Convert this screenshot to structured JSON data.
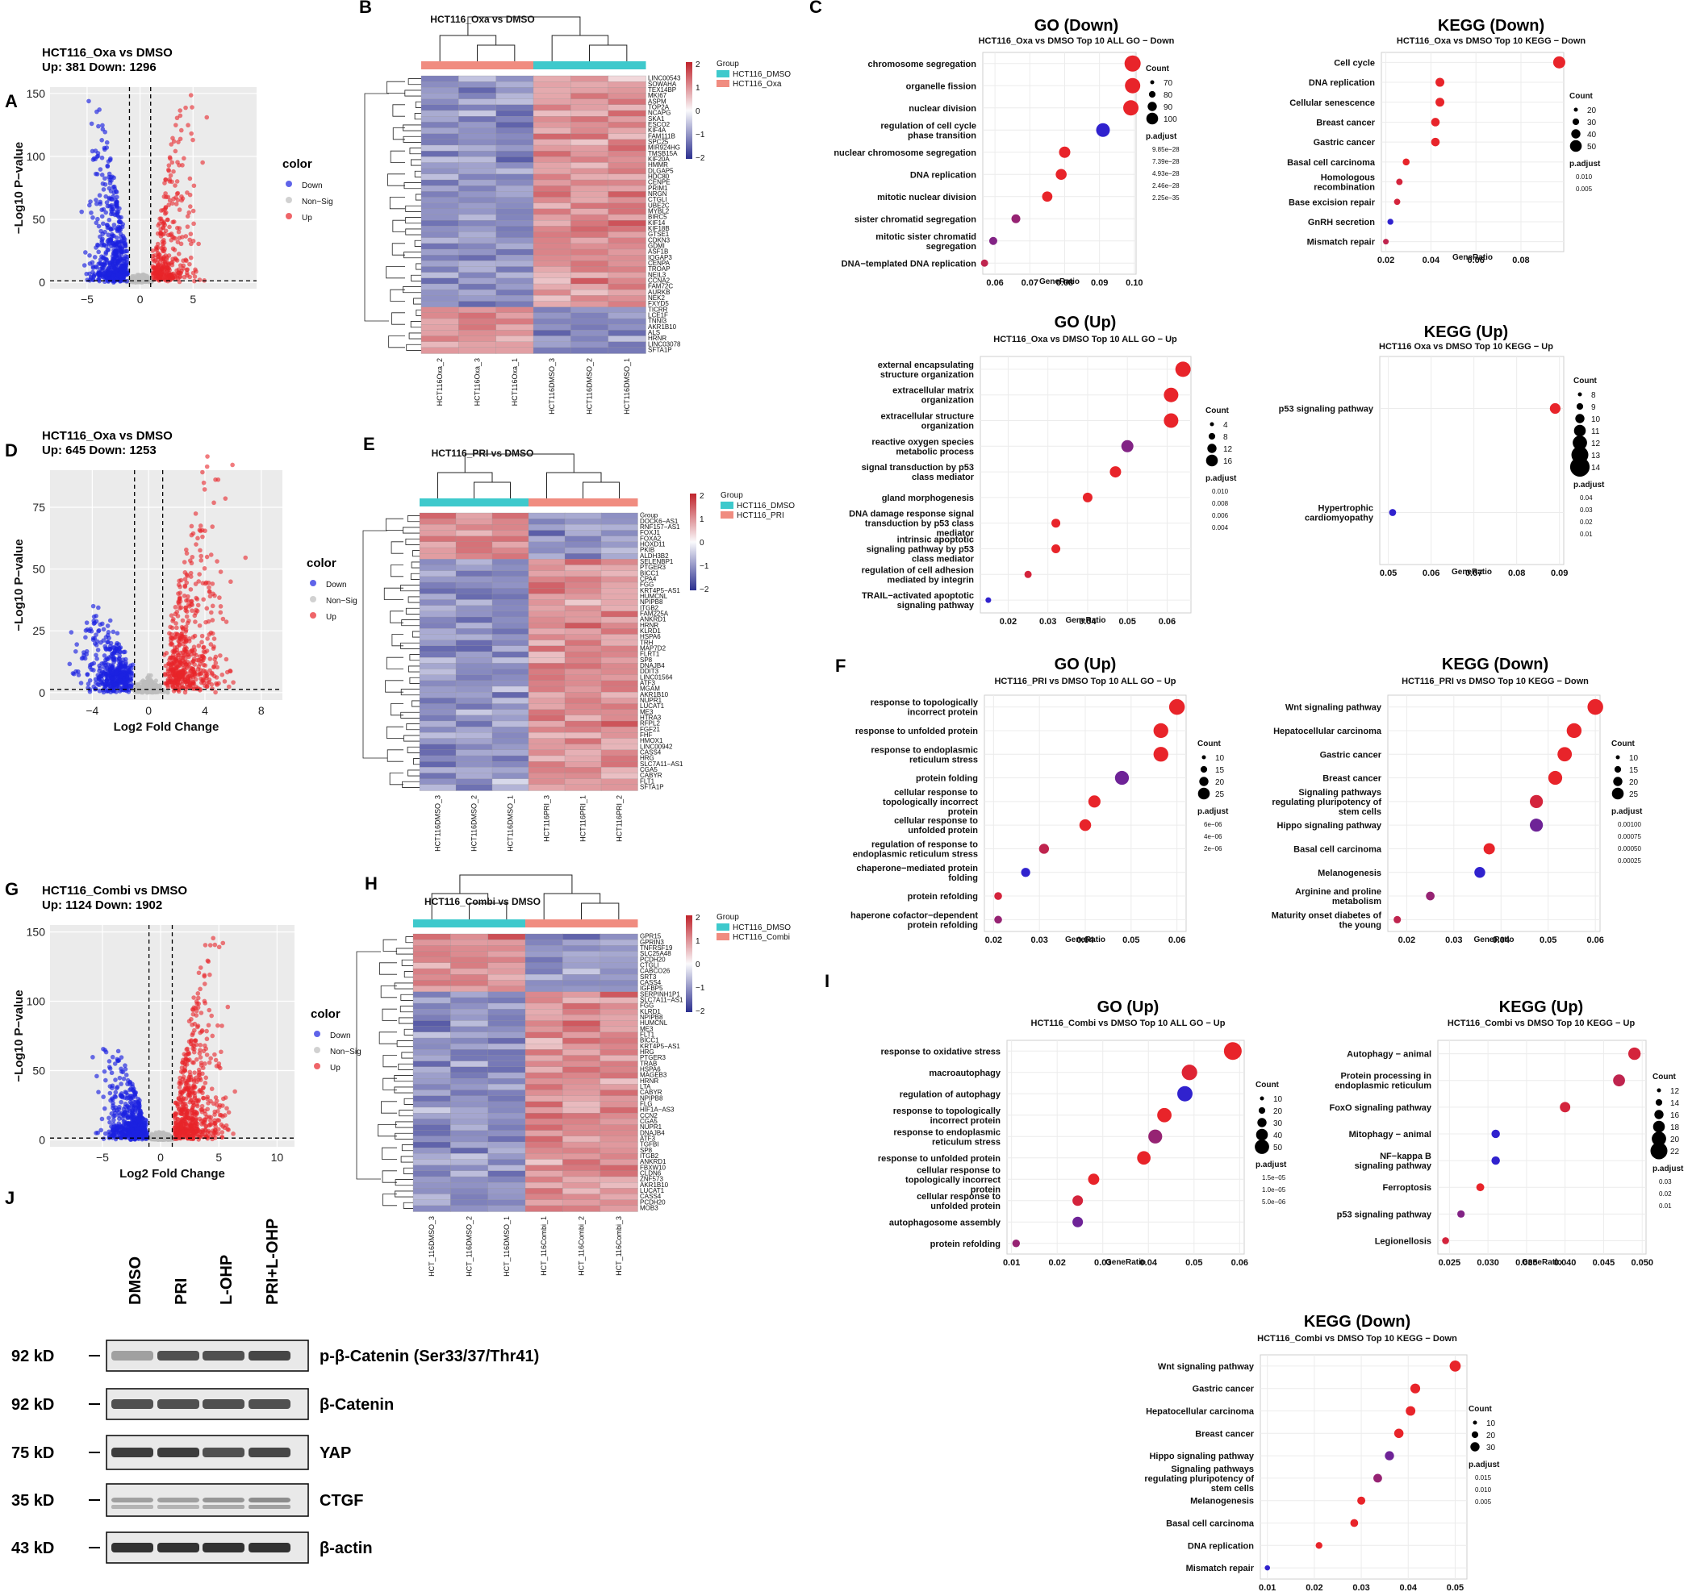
{
  "panel_labels": [
    "A",
    "B",
    "C",
    "D",
    "E",
    "F",
    "G",
    "H",
    "I",
    "J"
  ],
  "volcano": [
    {
      "id": "A",
      "title": "HCT116_Oxa vs DMSO",
      "counts": "Up: 381 Down: 1296",
      "xlabel": "",
      "ylabel": "−Log10 P−value",
      "xticks": [
        "−5",
        "0",
        "5"
      ],
      "yticks": [
        "0",
        "50",
        "100",
        "150"
      ],
      "legend_title": "color",
      "legend": [
        "Down",
        "Non−Sig",
        "Up"
      ]
    },
    {
      "id": "D",
      "title": "HCT116_Oxa vs DMSO",
      "counts": "Up: 645 Down: 1253",
      "xlabel": "Log2 Fold Change",
      "ylabel": "−Log10 P−value",
      "xticks": [
        "−4",
        "0",
        "4",
        "8"
      ],
      "yticks": [
        "0",
        "25",
        "50",
        "75"
      ],
      "legend_title": "color",
      "legend": [
        "Down",
        "Non−Sig",
        "Up"
      ]
    },
    {
      "id": "G",
      "title": "HCT116_Combi vs DMSO",
      "counts": "Up: 1124 Down: 1902",
      "xlabel": "Log2 Fold Change",
      "ylabel": "−Log10 P−value",
      "xticks": [
        "−5",
        "0",
        "5",
        "10"
      ],
      "yticks": [
        "0",
        "50",
        "100",
        "150"
      ],
      "legend_title": "color",
      "legend": [
        "Down",
        "Non−Sig",
        "Up"
      ]
    }
  ],
  "heatmaps": [
    {
      "id": "B",
      "title": "HCT116_Oxa vs DMSO",
      "group_title": "Group",
      "groups": [
        "HCT116_DMSO",
        "HCT116_Oxa"
      ],
      "scale": [
        "2",
        "1",
        "0",
        "−1",
        "−2"
      ],
      "columns": [
        "HCT116Oxa_2",
        "HCT116Oxa_3",
        "HCT116Oxa_1",
        "HCT116DMSO_3",
        "HCT116DMSO_2",
        "HCT116DMSO_1"
      ],
      "genes": [
        "LINC00543",
        "SOWAHA",
        "TEX14BP",
        "MKI67",
        "ASPM",
        "TOP2A",
        "NCAPG",
        "SKA1",
        "ESCO2",
        "KIF4A",
        "FAM111B",
        "SPC25",
        "MIR924HG",
        "TMSB15A",
        "KIF20A",
        "HMMR",
        "DLGAP5",
        "HDC80",
        "CENPE",
        "PRIM1",
        "NRGN",
        "CTGLI",
        "UBE2C",
        "MYBL2",
        "BIRC5",
        "KIF14",
        "KIF18B",
        "GTSE1",
        "CDKN3",
        "GDMI",
        "ASF1B",
        "IQGAP3",
        "CENPA",
        "TROAP",
        "NEIL3",
        "CCNA2",
        "FAM72C",
        "AURKB",
        "NEK2",
        "FXYD5",
        "TICRR",
        "LCE1F",
        "TNNI3",
        "AKR1B10",
        "ALS",
        "HRNR",
        "LINC03078",
        "SFTA1P",
        "IGFL2−AS1"
      ]
    },
    {
      "id": "E",
      "title": "HCT116_PRI vs DMSO",
      "group_title": "Group",
      "groups": [
        "HCT116_DMSO",
        "HCT116_PRI"
      ],
      "scale": [
        "2",
        "1",
        "0",
        "−1",
        "−2"
      ],
      "columns": [
        "HCT116DMSO_3",
        "HCT116DMSO_2",
        "HCT116DMSO_1",
        "HCT116PRI_3",
        "HCT116PRI_1",
        "HCT116PRI_2"
      ],
      "genes": [
        "Group",
        "DOCK6−AS1",
        "RNF157−AS1",
        "FOXJ1",
        "FOXA2",
        "HOXD11",
        "PKIB",
        "ALDH3B2",
        "SELENBP1",
        "PTGER3",
        "BICC1",
        "CPA4",
        "FGG",
        "KRT4P5−AS1",
        "HUMCNL",
        "NPIPB8",
        "ITGB2",
        "FAM225A",
        "ANKRD1",
        "HRNR",
        "KLRD1",
        "HSPA6",
        "TRH",
        "MAP7D2",
        "FLRT1",
        "SP8",
        "DNAJB4",
        "DDIT3",
        "LINC01564",
        "ATF3",
        "MGAM",
        "AKR1B10",
        "NUPR1",
        "LUCAT1",
        "ME3",
        "HTRA3",
        "RFPL2",
        "FGF21",
        "FHF",
        "HMOX1",
        "LINC00942",
        "CASS4",
        "HRG",
        "SLC7A11−AS1",
        "CGA5",
        "CABYR",
        "FLT1",
        "SFTA1P",
        "DNG1",
        "FBXW10"
      ]
    },
    {
      "id": "H",
      "title": "HCT116_Combi vs DMSO",
      "group_title": "Group",
      "groups": [
        "HCT116_DMSO",
        "HCT116_Combi"
      ],
      "scale": [
        "2",
        "1",
        "0",
        "−1",
        "−2"
      ],
      "columns": [
        "HCT_116DMSO_3",
        "HCT_116DMSO_2",
        "HCT_116DMSO_1",
        "HCT_116Combi_1",
        "HCT_116Combi_2",
        "HCT_116Combi_3"
      ],
      "genes": [
        "GPR15",
        "GPRIN3",
        "TNFRSF19",
        "SLC25A48",
        "PCDH20",
        "CTGLI",
        "CABCO26",
        "SRT3",
        "CASS4",
        "IGFBP5",
        "SERPINH1P1",
        "SLC7A11−AS1",
        "FGG",
        "KLRD1",
        "NPIPB8",
        "HUMCNL",
        "ME3",
        "FLT1",
        "BICC1",
        "KRT4P5−AS1",
        "HRG",
        "PTGER3",
        "TRAB",
        "HSPA6",
        "MAGEB3",
        "HRNR",
        "LTA",
        "CABYR",
        "NPIPB8",
        "FLG",
        "HIF1A−AS3",
        "CCN2",
        "CGA5",
        "NUPR1",
        "DNAJB4",
        "ATF3",
        "TGFBI",
        "SP8",
        "ITGB2",
        "ANKRD1",
        "FBXW10",
        "CLDN6",
        "ZNF573",
        "AKR1B10",
        "LUCAT1",
        "CASS4",
        "PCDH20",
        "MOB3"
      ]
    }
  ],
  "dotplots": [
    {
      "id": "GO_down",
      "big": "GO (Down)",
      "sub": "HCT116_Oxa vs DMSO Top 10 ALL GO − Down",
      "xlabel": "GeneRatio",
      "xticks": [
        0.06,
        0.07,
        0.08,
        0.09,
        0.1
      ],
      "xtick_labels": [
        "0.06",
        "0.07",
        "0.08",
        "0.09",
        "0.10"
      ],
      "terms": [
        "chromosome segregation",
        "organelle fission",
        "nuclear division",
        "regulation of cell cycle\nphase transition",
        "nuclear chromosome segregation",
        "DNA replication",
        "mitotic nuclear division",
        "sister chromatid segregation",
        "mitotic sister chromatid\nsegregation",
        "DNA−templated DNA replication"
      ],
      "x": [
        0.0995,
        0.0995,
        0.099,
        0.091,
        0.08,
        0.079,
        0.075,
        0.066,
        0.0595,
        0.057
      ],
      "size": [
        100,
        95,
        95,
        85,
        70,
        68,
        64,
        55,
        50,
        45
      ],
      "p": [
        0.0,
        0.0,
        0.0,
        0.9,
        0.0,
        0.0,
        0.0,
        0.4,
        0.5,
        0.2
      ],
      "legend_count": "Count",
      "count_vals": [
        "70",
        "80",
        "90",
        "100"
      ],
      "legend_p": "p.adjust",
      "p_vals": [
        "9.85e−28",
        "7.39e−28",
        "4.93e−28",
        "2.46e−28",
        "2.25e−35"
      ]
    },
    {
      "id": "KEGG_down",
      "big": "KEGG (Down)",
      "sub": "HCT116_Oxa vs DMSO Top 10 KEGG − Down",
      "xlabel": "GeneRatio",
      "xticks": [
        0.02,
        0.04,
        0.06,
        0.08
      ],
      "xtick_labels": [
        "0.02",
        "0.04",
        "0.06",
        "0.08"
      ],
      "terms": [
        "Cell cycle",
        "DNA replication",
        "Cellular senescence",
        "Breast cancer",
        "Gastric cancer",
        "Basal cell carcinoma",
        "Homologous\nrecombination",
        "Base excision repair",
        "GnRH secretion",
        "Mismatch repair"
      ],
      "x": [
        0.097,
        0.044,
        0.044,
        0.042,
        0.042,
        0.029,
        0.026,
        0.025,
        0.022,
        0.02
      ],
      "size": [
        50,
        30,
        30,
        28,
        28,
        18,
        15,
        14,
        12,
        10
      ],
      "p": [
        0.0,
        0.0,
        0.0,
        0.0,
        0.0,
        0.0,
        0.1,
        0.1,
        0.9,
        0.2
      ],
      "legend_count": "Count",
      "count_vals": [
        "20",
        "30",
        "40",
        "50"
      ],
      "legend_p": "p.adjust",
      "p_vals": [
        "0.010",
        "0.005"
      ]
    },
    {
      "id": "GO_up_oxa",
      "big": "GO (Up)",
      "sub": "HCT116_Oxa vs DMSO Top 10 ALL GO − Up",
      "xlabel": "GeneRatio",
      "xticks": [
        0.02,
        0.03,
        0.04,
        0.05,
        0.06
      ],
      "xtick_labels": [
        "0.02",
        "0.03",
        "0.04",
        "0.05",
        "0.06"
      ],
      "terms": [
        "external encapsulating\nstructure organization",
        "extracellular matrix\norganization",
        "extracellular structure\norganization",
        "reactive oxygen species\nmetabolic process",
        "signal transduction by p53\nclass mediator",
        "gland morphogenesis",
        "DNA damage response signal\ntransduction by p53 class\nmediator",
        "intrinsic apoptotic\nsignaling pathway by p53\nclass mediator",
        "regulation of cell adhesion\nmediated by integrin",
        "TRAIL−activated apoptotic\nsignaling pathway"
      ],
      "x": [
        0.064,
        0.061,
        0.061,
        0.05,
        0.047,
        0.04,
        0.032,
        0.032,
        0.025,
        0.015
      ],
      "size": [
        16,
        15,
        15,
        12,
        11,
        9,
        8,
        8,
        6,
        4
      ],
      "p": [
        0.0,
        0.0,
        0.0,
        0.5,
        0.0,
        0.0,
        0.0,
        0.0,
        0.1,
        0.9
      ],
      "legend_count": "Count",
      "count_vals": [
        "4",
        "8",
        "12",
        "16"
      ],
      "legend_p": "p.adjust",
      "p_vals": [
        "0.010",
        "0.008",
        "0.006",
        "0.004"
      ]
    },
    {
      "id": "KEGG_up_oxa",
      "big": "KEGG (Up)",
      "sub": "HCT116 Oxa vs DMSO Top 10 KEGG − Up",
      "xlabel": "GeneRatio",
      "xticks": [
        0.05,
        0.06,
        0.07,
        0.08,
        0.09
      ],
      "xtick_labels": [
        "0.05",
        "0.06",
        "0.07",
        "0.08",
        "0.09"
      ],
      "terms": [
        "p53 signaling pathway",
        "Hypertrophic\ncardiomyopathy"
      ],
      "x": [
        0.089,
        0.051
      ],
      "size": [
        14,
        8
      ],
      "p": [
        0.0,
        0.9
      ],
      "legend_count": "Count",
      "count_vals": [
        "8",
        "9",
        "10",
        "11",
        "12",
        "13",
        "14"
      ],
      "legend_p": "p.adjust",
      "p_vals": [
        "0.04",
        "0.03",
        "0.02",
        "0.01"
      ]
    },
    {
      "id": "GO_up_pri",
      "big": "GO (Up)",
      "sub": "HCT116_PRI vs DMSO Top 10 ALL GO − Up",
      "xlabel": "GeneRatio",
      "xticks": [
        0.02,
        0.03,
        0.04,
        0.05,
        0.06
      ],
      "xtick_labels": [
        "0.02",
        "0.03",
        "0.04",
        "0.05",
        "0.06"
      ],
      "terms": [
        "response to topologically\nincorrect protein",
        "response to unfolded protein",
        "response to endoplasmic\nreticulum stress",
        "protein folding",
        "cellular response to\ntopologically incorrect\nprotein",
        "cellular response to\nunfolded protein",
        "regulation of response to\nendoplasmic reticulum stress",
        "chaperone−mediated protein\nfolding",
        "protein refolding",
        "haperone cofactor−dependent\nprotein refolding"
      ],
      "x": [
        0.06,
        0.0565,
        0.0565,
        0.048,
        0.042,
        0.04,
        0.031,
        0.027,
        0.021,
        0.021
      ],
      "size": [
        26,
        24,
        24,
        22,
        18,
        17,
        13,
        11,
        8,
        8
      ],
      "p": [
        0.0,
        0.0,
        0.0,
        0.6,
        0.0,
        0.0,
        0.2,
        0.9,
        0.1,
        0.4
      ],
      "legend_count": "Count",
      "count_vals": [
        "10",
        "15",
        "20",
        "25"
      ],
      "legend_p": "p.adjust",
      "p_vals": [
        "6e−06",
        "4e−06",
        "2e−06"
      ]
    },
    {
      "id": "KEGG_down_pri",
      "big": "KEGG (Down)",
      "sub": "HCT116_PRI vs DMSO Top 10 KEGG − Down",
      "xlabel": "GeneRatio",
      "xticks": [
        0.02,
        0.03,
        0.04,
        0.05,
        0.06
      ],
      "xtick_labels": [
        "0.02",
        "0.03",
        "0.04",
        "0.05",
        "0.06"
      ],
      "terms": [
        "Wnt signaling pathway",
        "Hepatocellular carcinoma",
        "Gastric cancer",
        "Breast cancer",
        "Signaling pathways\nregulating pluripotency of\nstem cells",
        "Hippo signaling pathway",
        "Basal cell carcinoma",
        "Melanogenesis",
        "Arginine and proline\nmetabolism",
        "Maturity onset diabetes of\nthe young"
      ],
      "x": [
        0.06,
        0.0555,
        0.0535,
        0.0515,
        0.0475,
        0.0475,
        0.0375,
        0.0355,
        0.025,
        0.018
      ],
      "size": [
        26,
        24,
        23,
        22,
        20,
        20,
        16,
        15,
        10,
        7
      ],
      "p": [
        0.0,
        0.0,
        0.0,
        0.0,
        0.1,
        0.6,
        0.0,
        0.9,
        0.4,
        0.2
      ],
      "legend_count": "Count",
      "count_vals": [
        "10",
        "15",
        "20",
        "25"
      ],
      "legend_p": "p.adjust",
      "p_vals": [
        "0.00100",
        "0.00075",
        "0.00050",
        "0.00025"
      ]
    },
    {
      "id": "GO_up_combi",
      "big": "GO (Up)",
      "sub": "HCT116_Combi vs DMSO Top 10 ALL GO − Up",
      "xlabel": "GeneRatio",
      "xticks": [
        0.01,
        0.02,
        0.03,
        0.04,
        0.05,
        0.06
      ],
      "xtick_labels": [
        "0.01",
        "0.02",
        "0.03",
        "0.04",
        "0.05",
        "0.06"
      ],
      "terms": [
        "response to oxidative stress",
        "macroautophagy",
        "regulation of autophagy",
        "response to topologically\nincorrect protein",
        "response to endoplasmic\nreticulum stress",
        "response to unfolded protein",
        "cellular response to\ntopologically incorrect\nprotein",
        "cellular response to\nunfolded protein",
        "autophagosome assembly",
        "protein refolding"
      ],
      "x": [
        0.0585,
        0.049,
        0.048,
        0.0435,
        0.0415,
        0.039,
        0.028,
        0.0245,
        0.0245,
        0.011
      ],
      "size": [
        55,
        45,
        44,
        40,
        38,
        36,
        26,
        23,
        23,
        10
      ],
      "p": [
        0.0,
        0.05,
        0.9,
        0.0,
        0.4,
        0.0,
        0.0,
        0.1,
        0.6,
        0.4
      ],
      "legend_count": "Count",
      "count_vals": [
        "10",
        "20",
        "30",
        "40",
        "50"
      ],
      "legend_p": "p.adjust",
      "p_vals": [
        "1.5e−05",
        "1.0e−05",
        "5.0e−06"
      ]
    },
    {
      "id": "KEGG_up_combi",
      "big": "KEGG (Up)",
      "sub": "HCT116_Combi vs DMSO Top 10 KEGG − Up",
      "xlabel": "GeneRatio",
      "xticks": [
        0.025,
        0.03,
        0.035,
        0.04,
        0.045,
        0.05
      ],
      "xtick_labels": [
        "0.025",
        "0.030",
        "0.035",
        "0.040",
        "0.045",
        "0.050"
      ],
      "terms": [
        "Autophagy − animal",
        "Protein processing in\nendoplasmic reticulum",
        "FoxO signaling pathway",
        "Mitophagy − animal",
        "NF−kappa B\nsignaling pathway",
        "Ferroptosis",
        "p53 signaling pathway",
        "Legionellosis"
      ],
      "x": [
        0.049,
        0.047,
        0.04,
        0.031,
        0.031,
        0.029,
        0.0265,
        0.0245
      ],
      "size": [
        22,
        21,
        18,
        14,
        14,
        13,
        12,
        11
      ],
      "p": [
        0.1,
        0.2,
        0.1,
        0.9,
        0.9,
        0.0,
        0.5,
        0.1
      ],
      "legend_count": "Count",
      "count_vals": [
        "12",
        "14",
        "16",
        "18",
        "20",
        "22"
      ],
      "legend_p": "p.adjust",
      "p_vals": [
        "0.03",
        "0.02",
        "0.01"
      ]
    },
    {
      "id": "KEGG_down_combi",
      "big": "KEGG (Down)",
      "sub": "HCT116_Combi vs DMSO Top 10 KEGG − Down",
      "xlabel": "",
      "xticks": [
        0.01,
        0.02,
        0.03,
        0.04,
        0.05
      ],
      "xtick_labels": [
        "0.01",
        "0.02",
        "0.03",
        "0.04",
        "0.05"
      ],
      "terms": [
        "Wnt signaling pathway",
        "Gastric cancer",
        "Hepatocellular carcinoma",
        "Breast cancer",
        "Hippo signaling pathway",
        "Signaling pathways\nregulating pluripotency of\nstem cells",
        "Melanogenesis",
        "Basal cell carcinoma",
        "DNA replication",
        "Mismatch repair"
      ],
      "x": [
        0.05,
        0.0415,
        0.0405,
        0.038,
        0.036,
        0.0335,
        0.03,
        0.0285,
        0.021,
        0.01
      ],
      "size": [
        34,
        28,
        27,
        26,
        25,
        23,
        20,
        19,
        14,
        7
      ],
      "p": [
        0.0,
        0.0,
        0.0,
        0.0,
        0.6,
        0.4,
        0.0,
        0.0,
        0.0,
        0.9
      ],
      "legend_count": "Count",
      "count_vals": [
        "10",
        "20",
        "30"
      ],
      "legend_p": "p.adjust",
      "p_vals": [
        "0.015",
        "0.010",
        "0.005"
      ]
    }
  ],
  "western": {
    "columns": [
      "DMSO",
      "PRI",
      "L-OHP",
      "PRI+L-OHP"
    ],
    "rows": [
      {
        "kd": "92 kD",
        "protein": "p-β-Catenin (Ser33/37/Thr41)",
        "intensity": [
          0.35,
          0.75,
          0.75,
          0.8
        ]
      },
      {
        "kd": "92 kD",
        "protein": "β-Catenin",
        "intensity": [
          0.75,
          0.75,
          0.75,
          0.75
        ]
      },
      {
        "kd": "75 kD",
        "protein": "YAP",
        "intensity": [
          0.85,
          0.85,
          0.75,
          0.8
        ]
      },
      {
        "kd": "35 kD",
        "protein": "CTGF",
        "intensity": [
          0.35,
          0.35,
          0.4,
          0.45
        ]
      },
      {
        "kd": "43 kD",
        "protein": "β-actin",
        "intensity": [
          0.9,
          0.9,
          0.9,
          0.9
        ]
      }
    ]
  },
  "colors": {
    "up": "#e8242a",
    "down": "#1b22e0",
    "nonsig": "#bdbdbd",
    "teal": "#3ec9cc",
    "salmon": "#f08c80",
    "hm_red": "#c0232b",
    "hm_blue": "#2b2f8f"
  }
}
